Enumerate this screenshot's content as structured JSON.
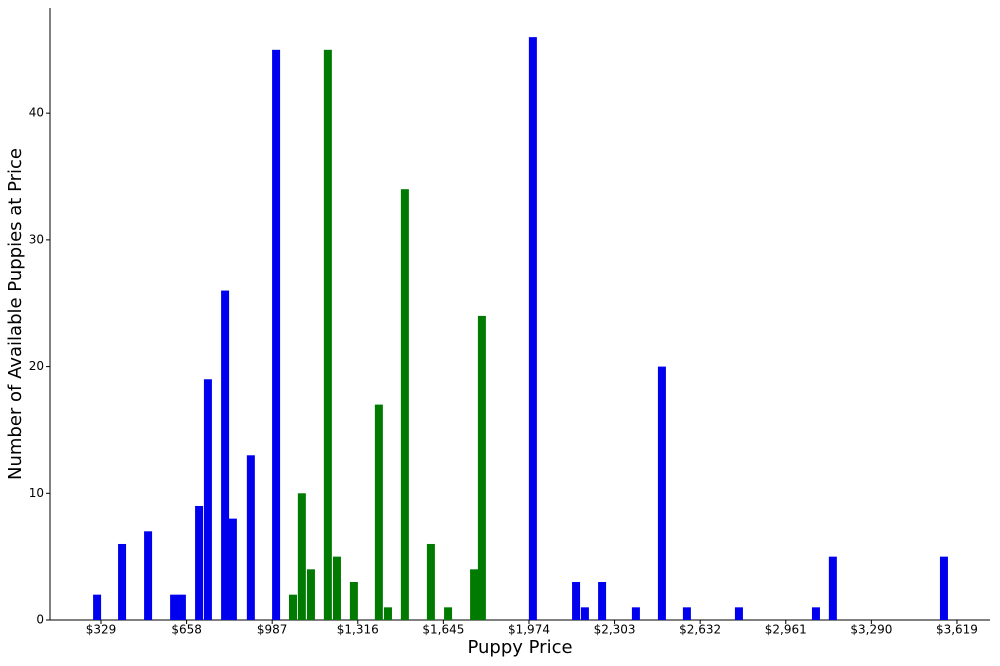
{
  "chart_data": {
    "type": "bar",
    "xlabel": "Puppy Price",
    "ylabel": "Number of Available Puppies at Price",
    "xlim": [
      133,
      3746
    ],
    "ylim": [
      0,
      48.3
    ],
    "xticks": [
      {
        "value": 329,
        "label": "$329"
      },
      {
        "value": 658,
        "label": "$658"
      },
      {
        "value": 987,
        "label": "$987"
      },
      {
        "value": 1316,
        "label": "$1,316"
      },
      {
        "value": 1645,
        "label": "$1,645"
      },
      {
        "value": 1974,
        "label": "$1,974"
      },
      {
        "value": 2303,
        "label": "$2,303"
      },
      {
        "value": 2632,
        "label": "$2,632"
      },
      {
        "value": 2961,
        "label": "$2,961"
      },
      {
        "value": 3290,
        "label": "$3,290"
      },
      {
        "value": 3619,
        "label": "$3,619"
      }
    ],
    "yticks": [
      0,
      10,
      20,
      30,
      40
    ],
    "series": [
      {
        "color": "#0000ee",
        "x": [
          314,
          410,
          510,
          610,
          640,
          706,
          740,
          806,
          836,
          905,
          1002,
          1989,
          2155,
          2189,
          2255,
          2385,
          2485,
          2581,
          2781,
          3077,
          3142,
          3569
        ],
        "values": [
          2,
          6,
          7,
          2,
          2,
          9,
          19,
          26,
          8,
          13,
          45,
          46,
          3,
          1,
          3,
          1,
          20,
          1,
          1,
          1,
          5,
          5
        ]
      },
      {
        "color": "#007a00",
        "x": [
          1067,
          1101,
          1136,
          1201,
          1236,
          1301,
          1397,
          1432,
          1497,
          1597,
          1663,
          1763,
          1793
        ],
        "values": [
          2,
          10,
          4,
          45,
          5,
          3,
          17,
          1,
          34,
          6,
          1,
          4,
          24
        ]
      }
    ]
  }
}
